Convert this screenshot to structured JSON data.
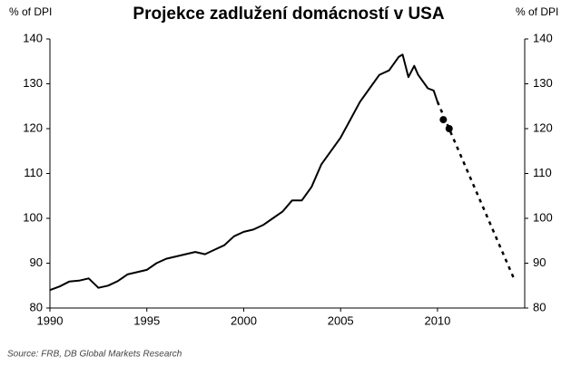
{
  "chart_data": {
    "type": "line",
    "title": "Projekce zadlužení domácností v USA",
    "ylabel": "% of DPI",
    "y2label": "% of DPI",
    "source": "Source: FRB, DB Global Markets Research",
    "xlim": [
      1990,
      2014.5
    ],
    "xticks": [
      1990,
      1995,
      2000,
      2005,
      2010
    ],
    "ylim": [
      80,
      140
    ],
    "yticks": [
      80,
      90,
      100,
      110,
      120,
      130,
      140
    ],
    "y2lim": [
      80,
      140
    ],
    "y2ticks": [
      80,
      90,
      100,
      110,
      120,
      130,
      140
    ],
    "series": [
      {
        "color": "#000000",
        "style": "solid",
        "x": [
          1990,
          1990.5,
          1991,
          1991.5,
          1992,
          1992.5,
          1993,
          1993.5,
          1994,
          1994.5,
          1995,
          1995.5,
          1996,
          1996.5,
          1997,
          1997.5,
          1998,
          1998.5,
          1999,
          1999.5,
          2000,
          2000.5,
          2001,
          2001.5,
          2002,
          2002.5,
          2003,
          2003.5,
          2004,
          2004.5,
          2005,
          2005.5,
          2006,
          2006.5,
          2007,
          2007.5,
          2008,
          2008.2,
          2008.5,
          2008.8,
          2009,
          2009.5,
          2009.8,
          2010
        ],
        "values": [
          84,
          84.8,
          85.9,
          86.1,
          86.6,
          84.5,
          85,
          86,
          87.5,
          88,
          88.5,
          90,
          91,
          91.5,
          92,
          92.5,
          92,
          93,
          94,
          96,
          97,
          97.5,
          98.5,
          100,
          101.5,
          104,
          104,
          107,
          112,
          115,
          118,
          122,
          126,
          129,
          132,
          133,
          136,
          136.5,
          131.5,
          134,
          132,
          129,
          128.5,
          126
        ]
      },
      {
        "color": "#000000",
        "style": "dotted",
        "x": [
          2010,
          2014
        ],
        "values": [
          126,
          86
        ]
      },
      {
        "color": "#000000",
        "style": "markers",
        "x": [
          2010.3,
          2010.6
        ],
        "values": [
          122,
          120
        ]
      }
    ]
  }
}
